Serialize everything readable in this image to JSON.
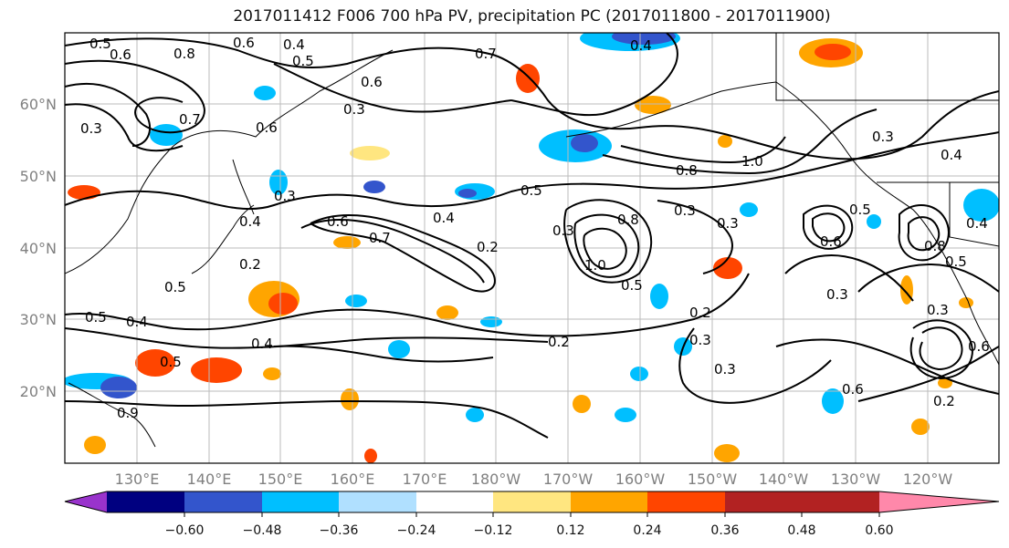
{
  "title": "2017011412 F006 700 hPa PV, precipitation PC (2017011800 - 2017011900)",
  "lat_labels": [
    "60°N",
    "50°N",
    "40°N",
    "30°N",
    "20°N"
  ],
  "lon_labels": [
    "130°E",
    "140°E",
    "150°E",
    "160°E",
    "170°E",
    "180°W",
    "170°W",
    "160°W",
    "150°W",
    "140°W",
    "130°W",
    "120°W"
  ],
  "map_extent": {
    "lon_min": 120,
    "lon_max": 250,
    "lat_min": 10,
    "lat_max": 70
  },
  "colorbar": {
    "ticks": [
      "−0.60",
      "−0.48",
      "−0.36",
      "−0.24",
      "−0.12",
      "0.12",
      "0.24",
      "0.36",
      "0.48",
      "0.60"
    ],
    "colors": [
      "#9933cc",
      "#000080",
      "#3355cc",
      "#00bfff",
      "#b0e0ff",
      "#ffffff",
      "#ffe680",
      "#ffa500",
      "#ff4500",
      "#b22222",
      "#ff88aa"
    ]
  },
  "contour_labels": [
    "0.5",
    "0.6",
    "0.8",
    "0.6",
    "0.4",
    "0.5",
    "0.7",
    "0.4",
    "0.6",
    "0.3",
    "0.7",
    "0.3",
    "0.8",
    "1.0",
    "0.3",
    "0.4",
    "0.5",
    "0.3",
    "0.6",
    "0.4",
    "0.7",
    "0.2",
    "0.3",
    "0.8",
    "1.0",
    "0.3",
    "0.5",
    "0.5",
    "0.2",
    "0.4",
    "0.3",
    "0.6",
    "0.4",
    "0.5",
    "0.3",
    "0.2",
    "0.4",
    "0.2",
    "0.3",
    "0.3",
    "0.6",
    "0.2",
    "0.5",
    "0.4",
    "0.5",
    "0.6",
    "0.9",
    "0.8",
    "0.5",
    "0.6",
    "0.3"
  ]
}
